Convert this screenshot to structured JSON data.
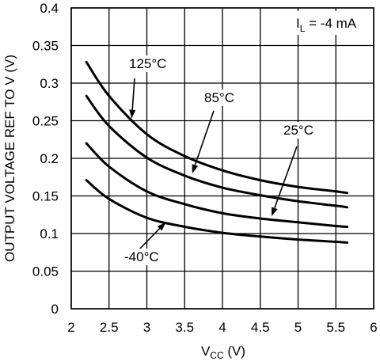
{
  "chart_data": {
    "type": "line",
    "xlabel": {
      "main": "V",
      "sub": "CC",
      "unit": " (V)"
    },
    "ylabel": "OUTPUT VOLTAGE REF TO V",
    "ylabel_unit": " (V)",
    "xlim": [
      2,
      6
    ],
    "ylim": [
      0,
      0.4
    ],
    "x_ticks": [
      "2",
      "2.5",
      "3",
      "3.5",
      "4",
      "4.5",
      "5",
      "5.5",
      "6"
    ],
    "y_ticks": [
      "0",
      "0.05",
      "0.1",
      "0.15",
      "0.2",
      "0.25",
      "0.3",
      "0.35",
      "0.4"
    ],
    "grid": true,
    "condition": {
      "main": "I",
      "sub": "L",
      "rest": " = -4 mA"
    },
    "series": [
      {
        "name": "125°C",
        "x": [
          2.2,
          2.5,
          3.0,
          3.5,
          4.0,
          4.5,
          5.0,
          5.5,
          5.65
        ],
        "y": [
          0.328,
          0.283,
          0.232,
          0.203,
          0.184,
          0.171,
          0.162,
          0.156,
          0.154
        ]
      },
      {
        "name": "85°C",
        "x": [
          2.2,
          2.5,
          3.0,
          3.5,
          4.0,
          4.5,
          5.0,
          5.5,
          5.65
        ],
        "y": [
          0.283,
          0.243,
          0.201,
          0.177,
          0.161,
          0.151,
          0.143,
          0.137,
          0.135
        ]
      },
      {
        "name": "25°C",
        "x": [
          2.2,
          2.5,
          3.0,
          3.5,
          4.0,
          4.5,
          5.0,
          5.5,
          5.65
        ],
        "y": [
          0.22,
          0.189,
          0.156,
          0.139,
          0.127,
          0.12,
          0.115,
          0.11,
          0.109
        ]
      },
      {
        "name": "-40°C",
        "x": [
          2.2,
          2.5,
          3.0,
          3.5,
          4.0,
          4.5,
          5.0,
          5.5,
          5.65
        ],
        "y": [
          0.171,
          0.146,
          0.121,
          0.109,
          0.101,
          0.096,
          0.092,
          0.089,
          0.088
        ]
      }
    ],
    "annotations": [
      {
        "series": "125°C",
        "label": "125°C",
        "point": [
          2.8,
          0.253
        ]
      },
      {
        "series": "85°C",
        "label": "85°C",
        "point": [
          3.6,
          0.18
        ]
      },
      {
        "series": "25°C",
        "label": "25°C",
        "point": [
          4.65,
          0.123
        ]
      },
      {
        "series": "-40°C",
        "label": "-40°C",
        "point": [
          3.25,
          0.115
        ]
      }
    ]
  }
}
